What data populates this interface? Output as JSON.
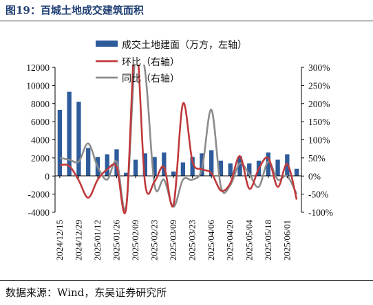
{
  "title": "图19：百城土地成交建筑面积",
  "source": "数据来源：Wind，东吴证券研究所",
  "chart_data": {
    "type": "bar+line",
    "x": [
      "2024/12/15",
      "2024/12/22",
      "2024/12/29",
      "2025/01/05",
      "2025/01/12",
      "2025/01/19",
      "2025/01/26",
      "2025/02/02",
      "2025/02/09",
      "2025/02/16",
      "2025/02/23",
      "2025/03/02",
      "2025/03/09",
      "2025/03/16",
      "2025/03/23",
      "2025/03/30",
      "2025/04/06",
      "2025/04/13",
      "2025/04/20",
      "2025/04/27",
      "2025/05/04",
      "2025/05/11",
      "2025/05/18",
      "2025/05/25",
      "2025/06/01",
      "2025/06/08"
    ],
    "xticks": [
      "2024/12/15",
      "2024/12/29",
      "2025/01/12",
      "2025/01/26",
      "2025/02/09",
      "2025/02/23",
      "2025/03/09",
      "2025/03/23",
      "2025/04/06",
      "2025/04/20",
      "2025/05/04",
      "2025/05/18",
      "2025/06/01"
    ],
    "series": [
      {
        "name": "成交土地建面（万方，左轴）",
        "type": "bar",
        "axis": "left",
        "color": "#2e5b9a",
        "values": [
          7300,
          9300,
          8200,
          3100,
          2100,
          2400,
          2950,
          350,
          1800,
          2500,
          2100,
          2600,
          500,
          1500,
          2100,
          2500,
          2850,
          1700,
          1400,
          2200,
          1400,
          1700,
          2600,
          1800,
          2400,
          800
        ]
      },
      {
        "name": "环比（右轴）",
        "type": "line",
        "axis": "right",
        "color": "#c0393b",
        "values": [
          30,
          28,
          -12,
          -60,
          -10,
          18,
          25,
          -90,
          380,
          -20,
          -15,
          25,
          -80,
          200,
          40,
          19,
          8,
          -40,
          -20,
          55,
          -35,
          20,
          50,
          -30,
          33,
          -65
        ]
      },
      {
        "name": "同比（右轴）",
        "type": "line",
        "axis": "right",
        "color": "#8c8c8c",
        "values": [
          50,
          45,
          40,
          90,
          25,
          -10,
          40,
          -85,
          340,
          290,
          -25,
          -10,
          -85,
          -10,
          -10,
          20,
          183,
          -30,
          -25,
          35,
          5,
          -30,
          40,
          -10,
          0,
          -50
        ]
      }
    ],
    "ylim_left": [
      -4000,
      12000
    ],
    "yticks_left": [
      "12000",
      "10000",
      "8000",
      "6000",
      "4000",
      "2000",
      "0",
      "-2000",
      "-4000"
    ],
    "ylim_right": [
      -100,
      300
    ],
    "yticks_right": [
      "300%",
      "250%",
      "200%",
      "150%",
      "100%",
      "50%",
      "0%",
      "-50%",
      "-100%"
    ],
    "legend_position": "top-center",
    "grid": false
  }
}
